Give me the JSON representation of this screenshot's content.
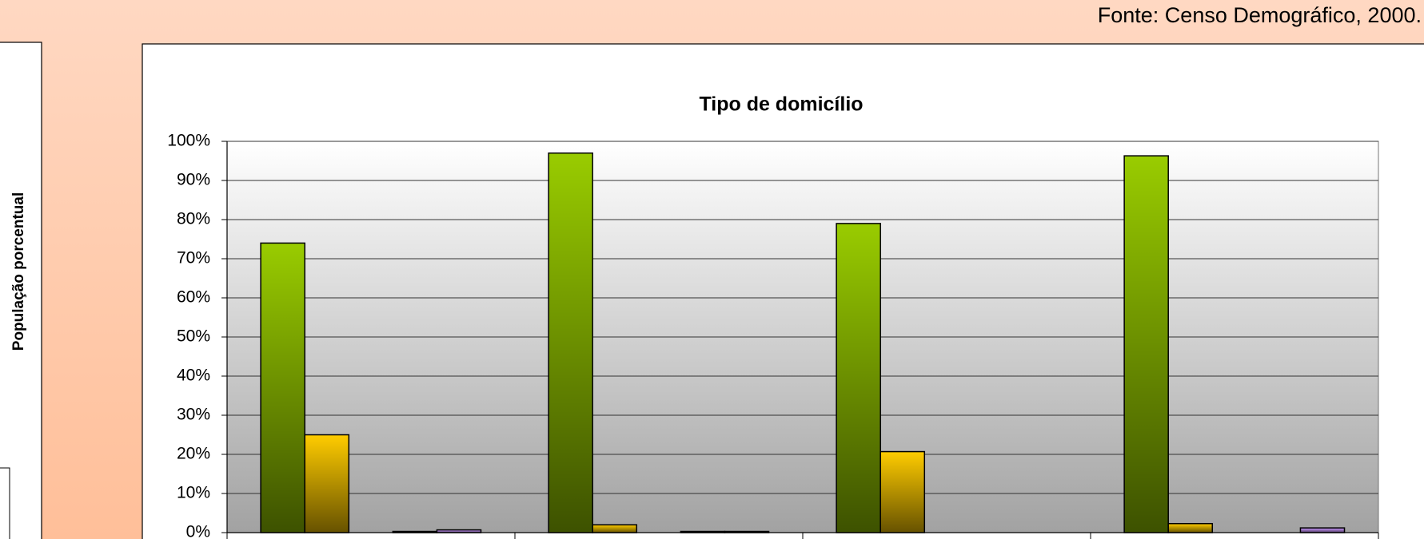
{
  "source": "Fonte: Censo Demográfico, 2000.",
  "side_panel": {
    "y_label": "População porcentual"
  },
  "chart_data": {
    "type": "bar",
    "title": "Tipo de domicílio",
    "categories": [
      null,
      null,
      null,
      null
    ],
    "series": [
      {
        "color": "#99cc00",
        "values": [
          74,
          97,
          79,
          96.3
        ]
      },
      {
        "color": "#ffcc00",
        "values": [
          25,
          2,
          20.7,
          2.3
        ]
      },
      {
        "values": [
          0,
          0,
          0,
          0
        ]
      },
      {
        "color": "#000000",
        "values": [
          0.3,
          0.3,
          0,
          0
        ]
      },
      {
        "color": "#cc99ff",
        "values": [
          0.7,
          0.3,
          0,
          1.2
        ]
      }
    ],
    "ylim": [
      0,
      100
    ],
    "yticks": [
      {
        "value": 0,
        "label": "0%"
      },
      {
        "value": 10,
        "label": "10%"
      },
      {
        "value": 20,
        "label": "20%"
      },
      {
        "value": 30,
        "label": "30%"
      },
      {
        "value": 40,
        "label": "40%"
      },
      {
        "value": 50,
        "label": "50%"
      },
      {
        "value": 60,
        "label": "60%"
      },
      {
        "value": 70,
        "label": "70%"
      },
      {
        "value": 80,
        "label": "80%"
      },
      {
        "value": 90,
        "label": "90%"
      },
      {
        "value": 100,
        "label": "100%"
      }
    ],
    "grid": true
  }
}
